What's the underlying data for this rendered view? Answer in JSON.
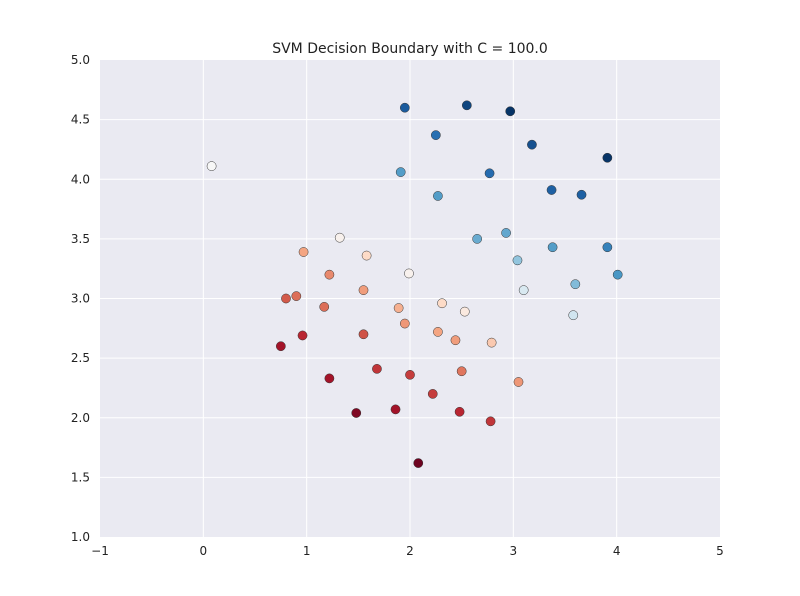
{
  "chart_data": {
    "type": "scatter",
    "title": "SVM Decision Boundary with C = 100.0",
    "xlabel": "",
    "ylabel": "",
    "xlim": [
      -1,
      5
    ],
    "ylim": [
      1.0,
      5.0
    ],
    "x_ticks": [
      -1,
      0,
      1,
      2,
      3,
      4,
      5
    ],
    "x_tick_labels": [
      "−1",
      "0",
      "1",
      "2",
      "3",
      "4",
      "5"
    ],
    "y_ticks": [
      1.0,
      1.5,
      2.0,
      2.5,
      3.0,
      3.5,
      4.0,
      4.5,
      5.0
    ],
    "y_tick_labels": [
      "1.0",
      "1.5",
      "2.0",
      "2.5",
      "3.0",
      "3.5",
      "4.0",
      "4.5",
      "5.0"
    ],
    "grid": true,
    "background_color": "#eaeaf2",
    "colormap": "RdBu",
    "color_value_note": "c: -1 = dark red, 0 = white, 1 = dark blue",
    "points": [
      {
        "x": 1.95,
        "y": 4.6,
        "c": 0.8
      },
      {
        "x": 2.55,
        "y": 4.62,
        "c": 0.9
      },
      {
        "x": 2.97,
        "y": 4.57,
        "c": 0.98
      },
      {
        "x": 2.25,
        "y": 4.37,
        "c": 0.7
      },
      {
        "x": 3.18,
        "y": 4.29,
        "c": 0.85
      },
      {
        "x": 3.91,
        "y": 4.18,
        "c": 0.98
      },
      {
        "x": 0.08,
        "y": 4.11,
        "c": 0.0
      },
      {
        "x": 1.91,
        "y": 4.06,
        "c": 0.45
      },
      {
        "x": 2.77,
        "y": 4.05,
        "c": 0.72
      },
      {
        "x": 3.37,
        "y": 3.91,
        "c": 0.78
      },
      {
        "x": 3.66,
        "y": 3.87,
        "c": 0.78
      },
      {
        "x": 2.27,
        "y": 3.86,
        "c": 0.45
      },
      {
        "x": 2.93,
        "y": 3.55,
        "c": 0.4
      },
      {
        "x": 2.65,
        "y": 3.5,
        "c": 0.38
      },
      {
        "x": 1.32,
        "y": 3.51,
        "c": -0.02
      },
      {
        "x": 3.38,
        "y": 3.43,
        "c": 0.45
      },
      {
        "x": 3.91,
        "y": 3.43,
        "c": 0.6
      },
      {
        "x": 0.97,
        "y": 3.39,
        "c": -0.25
      },
      {
        "x": 1.58,
        "y": 3.36,
        "c": -0.1
      },
      {
        "x": 3.04,
        "y": 3.32,
        "c": 0.25
      },
      {
        "x": 1.99,
        "y": 3.21,
        "c": -0.02
      },
      {
        "x": 4.01,
        "y": 3.2,
        "c": 0.48
      },
      {
        "x": 1.22,
        "y": 3.2,
        "c": -0.35
      },
      {
        "x": 3.6,
        "y": 3.12,
        "c": 0.3
      },
      {
        "x": 1.55,
        "y": 3.07,
        "c": -0.28
      },
      {
        "x": 3.1,
        "y": 3.07,
        "c": 0.08
      },
      {
        "x": 0.9,
        "y": 3.02,
        "c": -0.45
      },
      {
        "x": 0.8,
        "y": 3.0,
        "c": -0.52
      },
      {
        "x": 2.31,
        "y": 2.96,
        "c": -0.1
      },
      {
        "x": 1.17,
        "y": 2.93,
        "c": -0.45
      },
      {
        "x": 1.89,
        "y": 2.92,
        "c": -0.22
      },
      {
        "x": 2.53,
        "y": 2.89,
        "c": -0.05
      },
      {
        "x": 3.58,
        "y": 2.86,
        "c": 0.1
      },
      {
        "x": 1.95,
        "y": 2.79,
        "c": -0.3
      },
      {
        "x": 2.27,
        "y": 2.72,
        "c": -0.25
      },
      {
        "x": 0.96,
        "y": 2.69,
        "c": -0.7
      },
      {
        "x": 1.55,
        "y": 2.7,
        "c": -0.55
      },
      {
        "x": 2.44,
        "y": 2.65,
        "c": -0.28
      },
      {
        "x": 2.79,
        "y": 2.63,
        "c": -0.15
      },
      {
        "x": 0.75,
        "y": 2.6,
        "c": -0.8
      },
      {
        "x": 1.68,
        "y": 2.41,
        "c": -0.65
      },
      {
        "x": 2.5,
        "y": 2.39,
        "c": -0.42
      },
      {
        "x": 2.0,
        "y": 2.36,
        "c": -0.62
      },
      {
        "x": 1.22,
        "y": 2.33,
        "c": -0.8
      },
      {
        "x": 3.05,
        "y": 2.3,
        "c": -0.3
      },
      {
        "x": 2.22,
        "y": 2.2,
        "c": -0.62
      },
      {
        "x": 1.86,
        "y": 2.07,
        "c": -0.8
      },
      {
        "x": 2.48,
        "y": 2.05,
        "c": -0.7
      },
      {
        "x": 1.48,
        "y": 2.04,
        "c": -0.92
      },
      {
        "x": 2.78,
        "y": 1.97,
        "c": -0.65
      },
      {
        "x": 2.08,
        "y": 1.62,
        "c": -0.98
      }
    ]
  }
}
